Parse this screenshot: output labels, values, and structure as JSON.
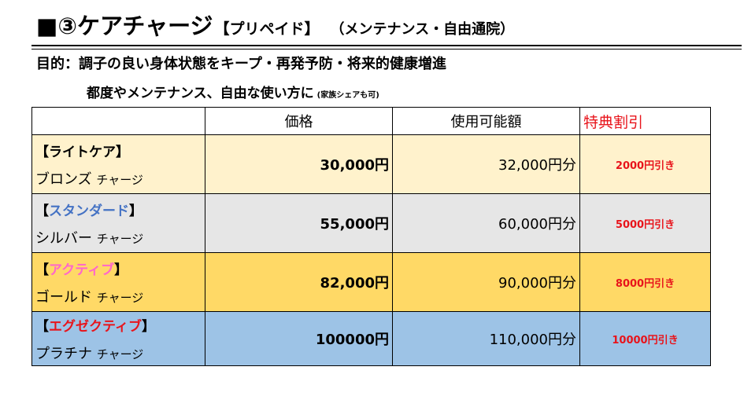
{
  "header": {
    "title": "■③ケアチャージ",
    "tag": "【プリペイド】",
    "subtitle": "（メンテナンス・自由通院）"
  },
  "purpose": "目的：調子の良い身体状態をキープ・再発予防・将来的健康増進",
  "usage": {
    "text": "都度やメンテナンス、自由な使い方に",
    "note": "(家族シェアも可)"
  },
  "table": {
    "headers": {
      "price": "価格",
      "usable": "使用可能額",
      "perk": "特典割引"
    },
    "rows": [
      {
        "tier": "ライトケア",
        "tier_color": "#000000",
        "plan": "ブロンズ",
        "charge": "チャージ",
        "price": "30,000円",
        "usable": "32,000円分",
        "perk": "2000円引き",
        "bg": "#fff2cc"
      },
      {
        "tier": "スタンダード",
        "tier_color": "#4472c4",
        "plan": "シルバー",
        "charge": "チャージ",
        "price": "55,000円",
        "usable": "60,000円分",
        "perk": "5000円引き",
        "bg": "#e6e6e6"
      },
      {
        "tier": "アクティブ",
        "tier_color": "#ff66cc",
        "plan": "ゴールド",
        "charge": "チャージ",
        "price": "82,000円",
        "usable": "90,000円分",
        "perk": "8000円引き",
        "bg": "#ffd966"
      },
      {
        "tier": "エグゼクティブ",
        "tier_color": "#e8141b",
        "plan": "プラチナ",
        "charge": "チャージ",
        "price": "100000円",
        "usable": "110,000円分",
        "perk": "10000円引き",
        "bg": "#9dc3e6"
      }
    ]
  },
  "bracket_open": "【",
  "bracket_close": "】",
  "accent_red": "#e8141b"
}
